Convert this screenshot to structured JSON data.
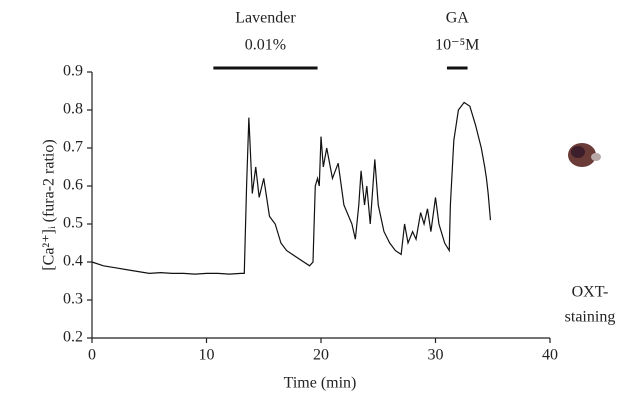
{
  "chart_data": {
    "type": "line",
    "xlabel": "Time (min)",
    "ylabel": "[Ca²⁺]ᵢ (fura-2 ratio)",
    "xlim": [
      0,
      40
    ],
    "xticks": [
      0,
      10,
      20,
      30,
      40
    ],
    "ylim": [
      0.2,
      0.9
    ],
    "yticks": [
      0.2,
      0.3,
      0.4,
      0.5,
      0.6,
      0.7,
      0.8,
      0.9
    ],
    "color": "#111111",
    "annotations": [
      {
        "lines": [
          "Lavender",
          "0.01%"
        ],
        "xrange": [
          10.6,
          19.7
        ]
      },
      {
        "lines": [
          "GA",
          "10⁻⁵M"
        ],
        "xrange": [
          31.0,
          32.8
        ]
      }
    ],
    "image_caption": [
      "OXT-",
      "staining"
    ],
    "x": [
      0,
      1,
      2,
      3,
      4,
      5,
      6,
      7,
      8,
      9,
      10,
      11,
      12,
      13,
      13.3,
      13.5,
      13.7,
      14,
      14.3,
      14.6,
      15,
      15.5,
      16,
      16.5,
      17,
      18,
      19,
      19.3,
      19.5,
      19.7,
      19.85,
      20,
      20.2,
      20.5,
      21,
      21.5,
      22,
      22.7,
      23,
      23.3,
      23.5,
      23.8,
      24,
      24.3,
      24.7,
      25,
      25.5,
      26,
      26.5,
      27,
      27.3,
      27.6,
      28,
      28.3,
      28.7,
      29,
      29.3,
      29.6,
      30,
      30.3,
      30.8,
      31.2,
      31.3,
      31.6,
      32,
      32.5,
      33,
      33.5,
      34,
      34.3,
      34.45,
      34.6,
      34.8
    ],
    "values": [
      0.4,
      0.39,
      0.385,
      0.38,
      0.375,
      0.37,
      0.372,
      0.37,
      0.37,
      0.368,
      0.37,
      0.37,
      0.368,
      0.37,
      0.37,
      0.6,
      0.78,
      0.58,
      0.65,
      0.57,
      0.62,
      0.52,
      0.5,
      0.45,
      0.43,
      0.41,
      0.39,
      0.4,
      0.6,
      0.62,
      0.6,
      0.73,
      0.65,
      0.7,
      0.62,
      0.66,
      0.55,
      0.5,
      0.46,
      0.55,
      0.64,
      0.55,
      0.6,
      0.5,
      0.67,
      0.55,
      0.48,
      0.45,
      0.43,
      0.42,
      0.5,
      0.45,
      0.48,
      0.46,
      0.53,
      0.5,
      0.54,
      0.48,
      0.57,
      0.5,
      0.45,
      0.43,
      0.55,
      0.72,
      0.8,
      0.82,
      0.81,
      0.76,
      0.7,
      0.65,
      0.62,
      0.58,
      0.51
    ]
  }
}
